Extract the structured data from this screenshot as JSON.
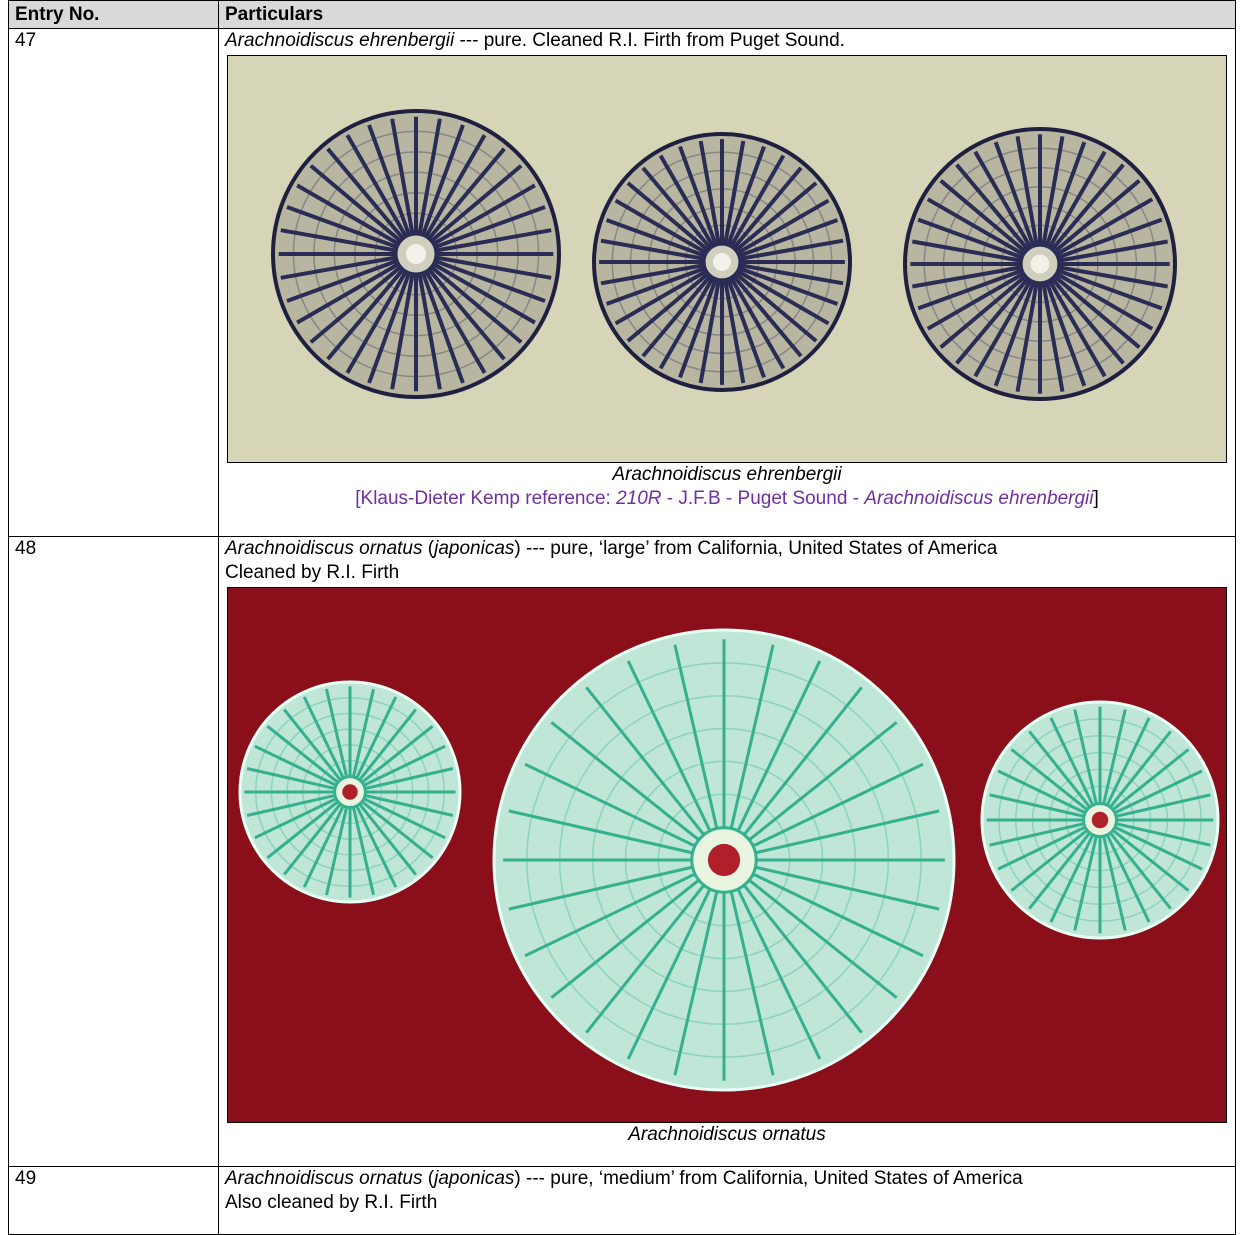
{
  "table": {
    "header": [
      "Entry No.",
      "Particulars"
    ],
    "rows": [
      {
        "entry": "47",
        "lines": [
          [
            {
              "text": "Arachnoidiscus ehrenbergii",
              "italic": true
            },
            {
              "text": " --- pure. Cleaned R.I. Firth from Puget Sound.",
              "italic": false
            }
          ]
        ],
        "figure": {
          "caption": "Arachnoidiscus ehrenbergii",
          "reference": [
            {
              "text": "[Klaus-Dieter Kemp reference: ",
              "italic": false
            },
            {
              "text": "210R",
              "italic": true
            },
            {
              "text": " - J.F.B - Puget Sound - ",
              "italic": false
            },
            {
              "text": "Arachnoidiscus ehrenbergii",
              "italic": true
            },
            {
              "text": "]",
              "italic": false
            }
          ]
        }
      },
      {
        "entry": "48",
        "lines": [
          [
            {
              "text": "Arachnoidiscus ornatus",
              "italic": true
            },
            {
              "text": " (",
              "italic": false
            },
            {
              "text": "japonicas",
              "italic": true
            },
            {
              "text": ") --- pure, ‘large’ from California, United States of America",
              "italic": false
            }
          ],
          [
            {
              "text": "Cleaned by R.I. Firth",
              "italic": false
            }
          ]
        ],
        "figure": {
          "caption": "Arachnoidiscus ornatus"
        }
      },
      {
        "entry": "49",
        "lines": [
          [
            {
              "text": "Arachnoidiscus ornatus",
              "italic": true
            },
            {
              "text": " (",
              "italic": false
            },
            {
              "text": "japonicas",
              "italic": true
            },
            {
              "text": ") --- pure, ‘medium’ from California, United States of America",
              "italic": false
            }
          ],
          [
            {
              "text": "Also cleaned by R.I. Firth",
              "italic": false
            }
          ]
        ]
      }
    ]
  }
}
